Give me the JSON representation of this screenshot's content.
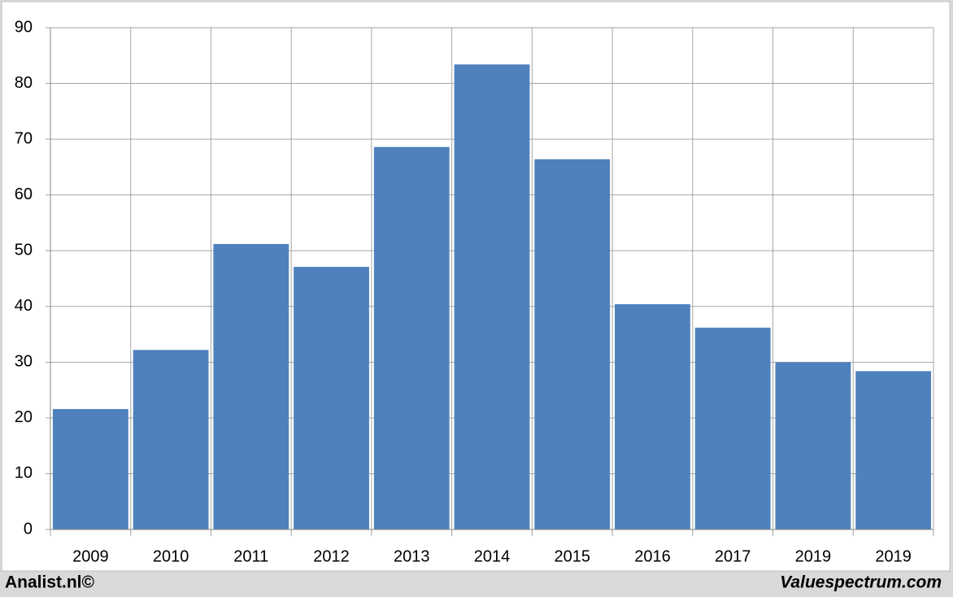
{
  "chart_data": {
    "type": "bar",
    "categories": [
      "2009",
      "2010",
      "2011",
      "2012",
      "2013",
      "2014",
      "2015",
      "2016",
      "2017",
      "2019",
      "2019"
    ],
    "values": [
      21.6,
      32.2,
      51.2,
      47.1,
      68.6,
      83.4,
      66.4,
      40.4,
      36.2,
      30.0,
      28.4
    ],
    "color": "#4f81bd",
    "ylim": [
      0,
      90
    ],
    "yticks": [
      0,
      10,
      20,
      30,
      40,
      50,
      60,
      70,
      80,
      90
    ],
    "grid": true,
    "source": "Analist.nl©",
    "credit": "Valuespectrum.com"
  }
}
